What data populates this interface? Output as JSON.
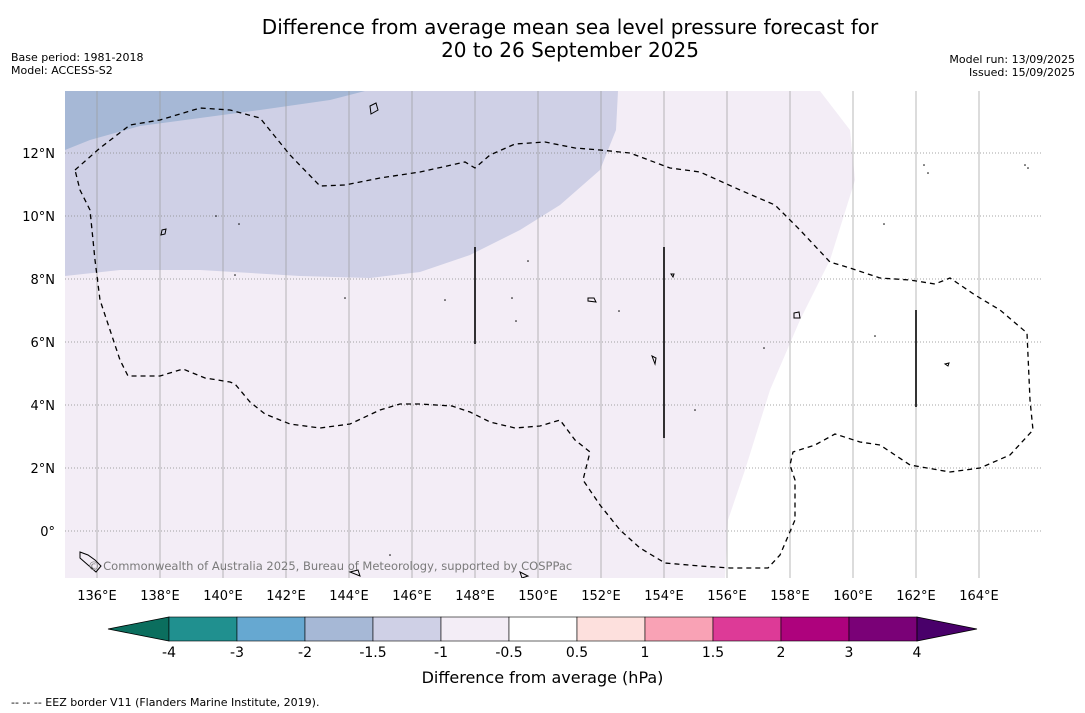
{
  "header": {
    "title_line1": "Difference from average mean sea level pressure forecast for",
    "title_line2": "20 to 26 September 2025",
    "base_period": "Base period: 1981-2018",
    "model": "Model: ACCESS-S2",
    "model_run": "Model run: 13/09/2025",
    "issued": "Issued: 15/09/2025"
  },
  "map": {
    "lon_labels": [
      "136°E",
      "138°E",
      "140°E",
      "142°E",
      "144°E",
      "146°E",
      "148°E",
      "150°E",
      "152°E",
      "154°E",
      "156°E",
      "158°E",
      "160°E",
      "162°E",
      "164°E"
    ],
    "lat_labels": [
      "12°N",
      "10°N",
      "8°N",
      "6°N",
      "4°N",
      "2°N",
      "0°"
    ],
    "copyright": "© Commonwealth of Australia 2025, Bureau of Meteorology, supported by COSPPac"
  },
  "colorbar": {
    "title": "Difference from average (hPa)",
    "tick_labels": [
      "-4",
      "-3",
      "-2",
      "-1.5",
      "-1",
      "-0.5",
      "0.5",
      "1",
      "1.5",
      "2",
      "3",
      "4"
    ],
    "bin_colors": [
      "#20908f",
      "#66a8d1",
      "#a6b8d6",
      "#cfd0e6",
      "#f3edf6",
      "#ffffff",
      "#fde0dd",
      "#f9a2b5",
      "#dd3a97",
      "#ae027d",
      "#7a0177"
    ],
    "under_color": "#0b6e5e",
    "over_color": "#49006a"
  },
  "legend": {
    "eez_note": "--  --  -- EEZ border V11 (Flanders Marine Institute, 2019)."
  }
}
